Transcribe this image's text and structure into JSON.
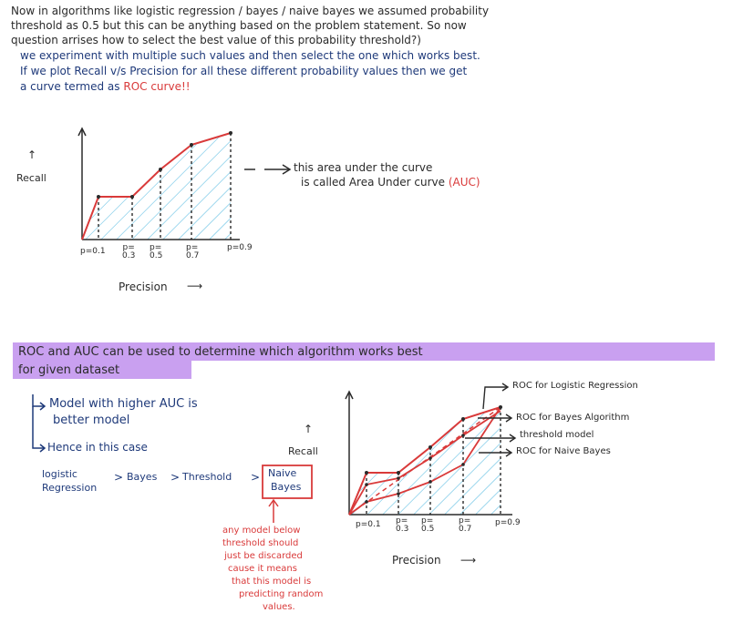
{
  "intro": {
    "line1": "Now in algorithms like logistic regression / bayes / naive bayes we assumed probability",
    "line2": "threshold as 0.5 but this can be anything based on the problem statement. So now",
    "line3": "question arrises how to select the best value of this probability threshold?)",
    "line4": "we experiment with multiple such values and then select the one which works best.",
    "line5": "If we plot Recall v/s Precision for all these different probability values then we get",
    "line6_prefix": "a curve termed as",
    "line6_highlight": "ROC curve!!"
  },
  "auc_note": {
    "line1": "this area under the curve",
    "line2": "is called Area Under curve",
    "acronym": "(AUC)"
  },
  "chart1": {
    "ylabel": "Recall",
    "xlabel": "Precision",
    "tick_labels": [
      "p=0.1",
      "p=\n0.3",
      "p=\n0.5",
      "p=\n0.7",
      "p=0.9"
    ]
  },
  "chart2": {
    "ylabel": "Recall",
    "xlabel": "Precision",
    "tick_labels": [
      "p=0.1",
      "p=\n0.3",
      "p=\n0.5",
      "p=\n0.7",
      "p=0.9"
    ],
    "legend": {
      "logistic": "ROC for Logistic Regression",
      "bayes": "ROC for Bayes Algorithm",
      "threshold": "threshold model",
      "naive": "ROC for Naive Bayes"
    }
  },
  "section2": {
    "heading_line1": "ROC and AUC can be used to determine which algorithm works best",
    "heading_line2": "for given dataset",
    "point1_line1": "Model with higher AUC is",
    "point1_line2": "better model",
    "point2": "Hence in this case",
    "rank_logistic_1": "logistic",
    "rank_logistic_2": "Regression",
    "rank_bayes": "Bayes",
    "rank_threshold": "Threshold",
    "rank_naive_1": "Naive",
    "rank_naive_2": "Bayes",
    "note_lines": [
      "any model below",
      "threshold should",
      "just be discarded",
      "cause it means",
      "that this model is",
      "predicting random",
      "values."
    ]
  },
  "colors": {
    "ink": "#2a2a2a",
    "navy": "#1f3a7a",
    "red": "#d93a3a",
    "hatch": "#4fb8e0",
    "highlight": "#c9a0f0"
  }
}
